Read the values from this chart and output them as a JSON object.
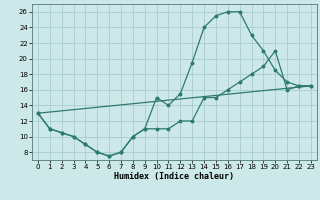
{
  "xlabel": "Humidex (Indice chaleur)",
  "bg_color": "#cde8e8",
  "grid_color": "#a8cccc",
  "line_color": "#2d7a6e",
  "xlim": [
    -0.5,
    23.5
  ],
  "ylim": [
    7,
    27
  ],
  "xticks": [
    0,
    1,
    2,
    3,
    4,
    5,
    6,
    7,
    8,
    9,
    10,
    11,
    12,
    13,
    14,
    15,
    16,
    17,
    18,
    19,
    20,
    21,
    22,
    23
  ],
  "yticks": [
    8,
    10,
    12,
    14,
    16,
    18,
    20,
    22,
    24,
    26
  ],
  "line1_x": [
    0,
    1,
    2,
    3,
    4,
    5,
    6,
    7,
    8,
    9,
    10,
    11,
    12,
    13,
    14,
    15,
    16,
    17,
    18,
    19,
    20,
    21,
    22,
    23
  ],
  "line1_y": [
    13,
    11,
    10.5,
    10,
    9,
    8,
    7.5,
    8,
    10,
    11,
    15,
    14,
    15.5,
    19.5,
    24,
    25.5,
    26,
    26,
    23,
    21,
    18.5,
    17,
    16.5,
    16.5
  ],
  "line2_x": [
    0,
    1,
    2,
    3,
    4,
    5,
    6,
    7,
    8,
    9,
    10,
    11,
    12,
    13,
    14,
    15,
    16,
    17,
    18,
    19,
    20,
    21,
    22,
    23
  ],
  "line2_y": [
    13,
    11,
    10.5,
    10,
    9,
    8,
    7.5,
    8,
    10,
    11,
    11,
    11,
    12,
    12,
    15,
    15,
    16,
    17,
    18,
    19,
    21,
    16,
    16.5,
    16.5
  ],
  "line3_x": [
    0,
    23
  ],
  "line3_y": [
    13,
    16.5
  ]
}
